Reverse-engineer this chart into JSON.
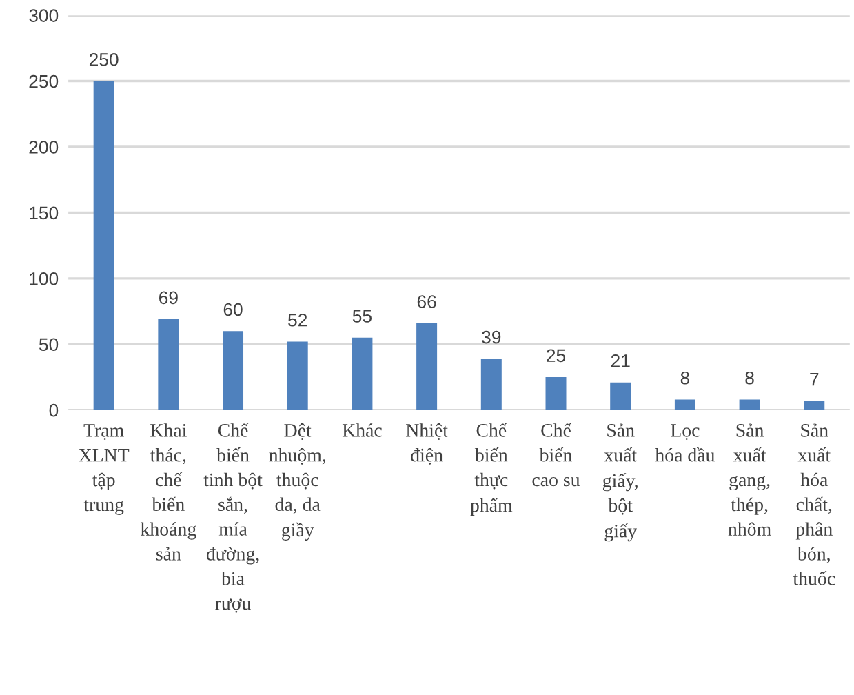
{
  "chart_data": {
    "type": "bar",
    "categories": [
      "Trạm\nXLNT\ntập\ntrung",
      "Khai\nthác,\nchế\nbiến\nkhoáng\nsản",
      "Chế\nbiến\ntinh bột\nsắn,\nmía\nđường,\nbia\nrượu",
      "Dệt\nnhuộm,\nthuộc\nda, da\ngiầy",
      "Khác",
      "Nhiệt\nđiện",
      "Chế\nbiến\nthực\nphẩm",
      "Chế\nbiến\ncao su",
      "Sản\nxuất\ngiấy,\nbột\ngiấy",
      "Lọc\nhóa dầu",
      "Sản\nxuất\ngang,\nthép,\nnhôm",
      "Sản\nxuất\nhóa\nchất,\nphân\nbón,\nthuốc"
    ],
    "values": [
      250,
      69,
      60,
      52,
      55,
      66,
      39,
      25,
      21,
      8,
      8,
      7
    ],
    "color": "#4f81bd",
    "ylim": [
      0,
      300
    ],
    "yticks": [
      0,
      50,
      100,
      150,
      200,
      250,
      300
    ],
    "grid": "y",
    "data_labels": true
  }
}
